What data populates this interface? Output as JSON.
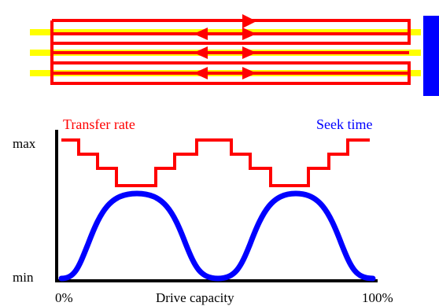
{
  "diagram": {
    "labels": {
      "transfer_rate": "Transfer rate",
      "seek_time": "Seek time",
      "y_max": "max",
      "y_min": "min",
      "x_start": "0%",
      "x_title": "Drive capacity",
      "x_end": "100%"
    },
    "colors": {
      "track_yellow": "#ffff00",
      "track_red": "#ff0000",
      "transfer_rate": "#ff0000",
      "seek_time": "#0000ff",
      "axis": "#000000",
      "head_block": "#0000ff"
    }
  }
}
